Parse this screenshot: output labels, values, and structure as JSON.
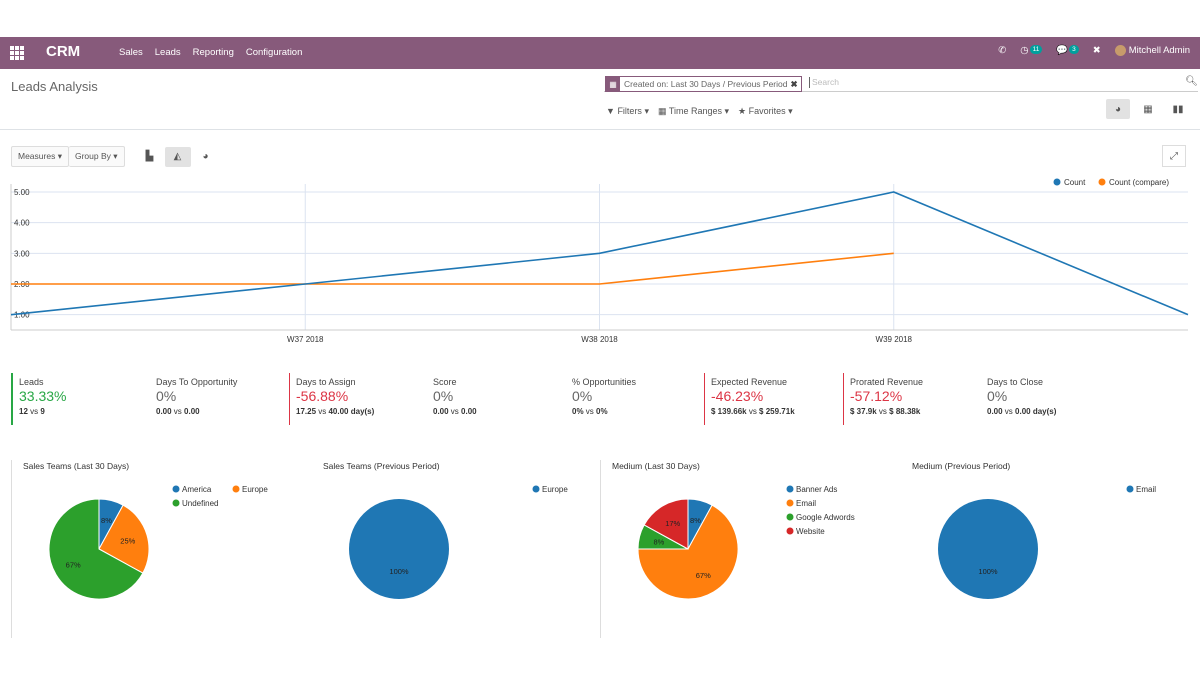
{
  "topbar": {
    "brand": "CRM",
    "menu": [
      "Sales",
      "Leads",
      "Reporting",
      "Configuration"
    ],
    "phone_icon": "phone-icon",
    "activity_count": "11",
    "messages_count": "3",
    "user": "Mitchell Admin"
  },
  "control_panel": {
    "title": "Leads Analysis",
    "facet": "Created on: Last 30 Days / Previous Period",
    "search_placeholder": "Search",
    "filters": "Filters",
    "time_ranges": "Time Ranges",
    "favorites": "Favorites"
  },
  "graph_toolbar": {
    "measures": "Measures",
    "group_by": "Group By"
  },
  "colors": {
    "primary": "#875a7b",
    "series1": "#1f77b4",
    "series2": "#ff7f0e",
    "green": "#2ca02c",
    "red": "#d62728"
  },
  "chart_data": [
    {
      "type": "line",
      "categories": [
        "",
        "W37 2018",
        "W38 2018",
        "W39 2018",
        ""
      ],
      "series": [
        {
          "name": "Count",
          "values": [
            1,
            2,
            3,
            5,
            1
          ]
        },
        {
          "name": "Count (compare)",
          "values": [
            2,
            2,
            2,
            3,
            null
          ]
        }
      ],
      "ylim": [
        0.5,
        5
      ],
      "yticks": [
        "1.00",
        "2.00",
        "3.00",
        "4.00",
        "5.00"
      ],
      "legend": "top-right",
      "grid": true
    },
    {
      "type": "pie",
      "title": "Sales Teams (Last 30 Days)",
      "labels": [
        "America",
        "Europe",
        "Undefined"
      ],
      "values": [
        8,
        25,
        67
      ],
      "value_labels": [
        "8%",
        "25%",
        "67%"
      ],
      "colors": [
        "#1f77b4",
        "#ff7f0e",
        "#2ca02c"
      ]
    },
    {
      "type": "pie",
      "title": "Sales Teams (Previous Period)",
      "labels": [
        "Europe"
      ],
      "values": [
        100
      ],
      "value_labels": [
        "100%"
      ],
      "colors": [
        "#1f77b4"
      ]
    },
    {
      "type": "pie",
      "title": "Medium (Last 30 Days)",
      "labels": [
        "Banner Ads",
        "Email",
        "Google Adwords",
        "Website"
      ],
      "values": [
        8,
        67,
        8,
        17
      ],
      "value_labels": [
        "8%",
        "67%",
        "8%",
        "17%"
      ],
      "colors": [
        "#1f77b4",
        "#ff7f0e",
        "#2ca02c",
        "#d62728"
      ]
    },
    {
      "type": "pie",
      "title": "Medium (Previous Period)",
      "labels": [
        "Email"
      ],
      "values": [
        100
      ],
      "value_labels": [
        "100%"
      ],
      "colors": [
        "#1f77b4"
      ]
    }
  ],
  "kpis": [
    {
      "label": "Leads",
      "value": "33.33%",
      "trend": "pos",
      "current": "12",
      "previous": "9"
    },
    {
      "label": "Days To Opportunity",
      "value": "0%",
      "trend": "neu",
      "current": "0.00",
      "previous": "0.00"
    },
    {
      "label": "Days to Assign",
      "value": "-56.88%",
      "trend": "neg",
      "current": "17.25",
      "previous": "40.00 day(s)"
    },
    {
      "label": "Score",
      "value": "0%",
      "trend": "neu",
      "current": "0.00",
      "previous": "0.00"
    },
    {
      "label": "% Opportunities",
      "value": "0%",
      "trend": "neu",
      "current": "0%",
      "previous": "0%"
    },
    {
      "label": "Expected Revenue",
      "value": "-46.23%",
      "trend": "neg",
      "current": "$ 139.66k",
      "previous": "$ 259.71k"
    },
    {
      "label": "Prorated Revenue",
      "value": "-57.12%",
      "trend": "neg",
      "current": "$ 37.9k",
      "previous": "$ 88.38k"
    },
    {
      "label": "Days to Close",
      "value": "0%",
      "trend": "neu",
      "current": "0.00",
      "previous": "0.00 day(s)"
    }
  ],
  "vs_label": "vs"
}
